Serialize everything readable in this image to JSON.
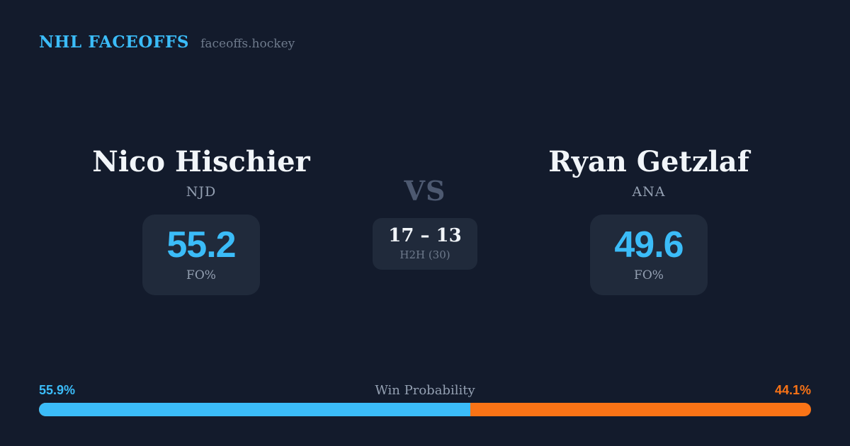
{
  "header": {
    "title": "NHL FACEOFFS",
    "site": "faceoffs.hockey"
  },
  "matchup": {
    "vs_label": "VS",
    "h2h": {
      "score": "17 – 13",
      "label": "H2H (30)"
    },
    "players": [
      {
        "name": "Nico Hischier",
        "team": "NJD",
        "fo_value": "55.2",
        "fo_label": "FO%"
      },
      {
        "name": "Ryan Getzlaf",
        "team": "ANA",
        "fo_value": "49.6",
        "fo_label": "FO%"
      }
    ]
  },
  "win_probability": {
    "label": "Win Probability",
    "left_pct_label": "55.9%",
    "right_pct_label": "44.1%",
    "left_value": 55.9,
    "right_value": 44.1
  },
  "colors": {
    "background": "#131b2c",
    "card": "#202a3b",
    "accent_blue": "#3bbcf8",
    "accent_orange": "#f97316",
    "text_primary": "#f1f5f9",
    "text_muted": "#94a0b2",
    "text_faint": "#6e7a8c",
    "vs_color": "#4d5970"
  }
}
